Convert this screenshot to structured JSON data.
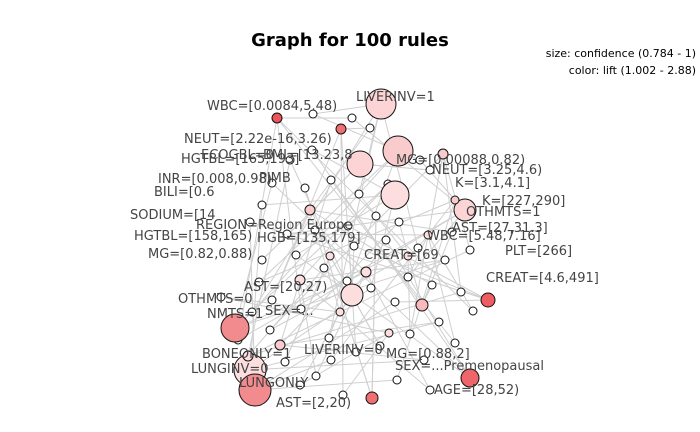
{
  "title": "Graph for 100 rules",
  "legend": {
    "size_text": "size: confidence (0.784 - 1)",
    "color_text": "color: lift (1.002 - 2.88)"
  },
  "colors": {
    "lift_low": "#fff0f0",
    "lift_high": "#e8383d",
    "edge": "#cfcfcf"
  },
  "labels": [
    "WBC=[0.0084,5.48)",
    "LIVERINV=1",
    "NEUT=[2.22e-16,3.26)",
    "BMI=[13.23,8",
    "ECOGBL=0",
    "HGTBL=[165,193]",
    "INR=[0.008,0.98)",
    "PIMB",
    "BILI=[0.6",
    "SODIUM=[14",
    "REGION=Region Europe",
    "HGTBL=[158,165)",
    "HGB=[135,179]",
    "MG=[0.82,0.88)",
    "CREAT=[69",
    "AST=[20,27)",
    "OTHMTS=0",
    "NMTS=1",
    "SEX=...",
    "BONEONLY=1",
    "LUNGINV=0",
    "LUNGONLY",
    "AST=[2,20)",
    "AGE=[28,52)",
    "MG=[0.88,2]",
    "SEX=...Premenopausal",
    "OTHMTS=1",
    "AST=[27,31.3]",
    "WBC=[5.48,7.16]",
    "K=[3.1,4.1]",
    "MG=[0.00088,0.82)",
    "NEUT=[3.25,4.6)",
    "LIVERINV=0",
    "CREAT=[4.6,491]",
    "K=[227,290]",
    "PLT=[266]"
  ]
}
